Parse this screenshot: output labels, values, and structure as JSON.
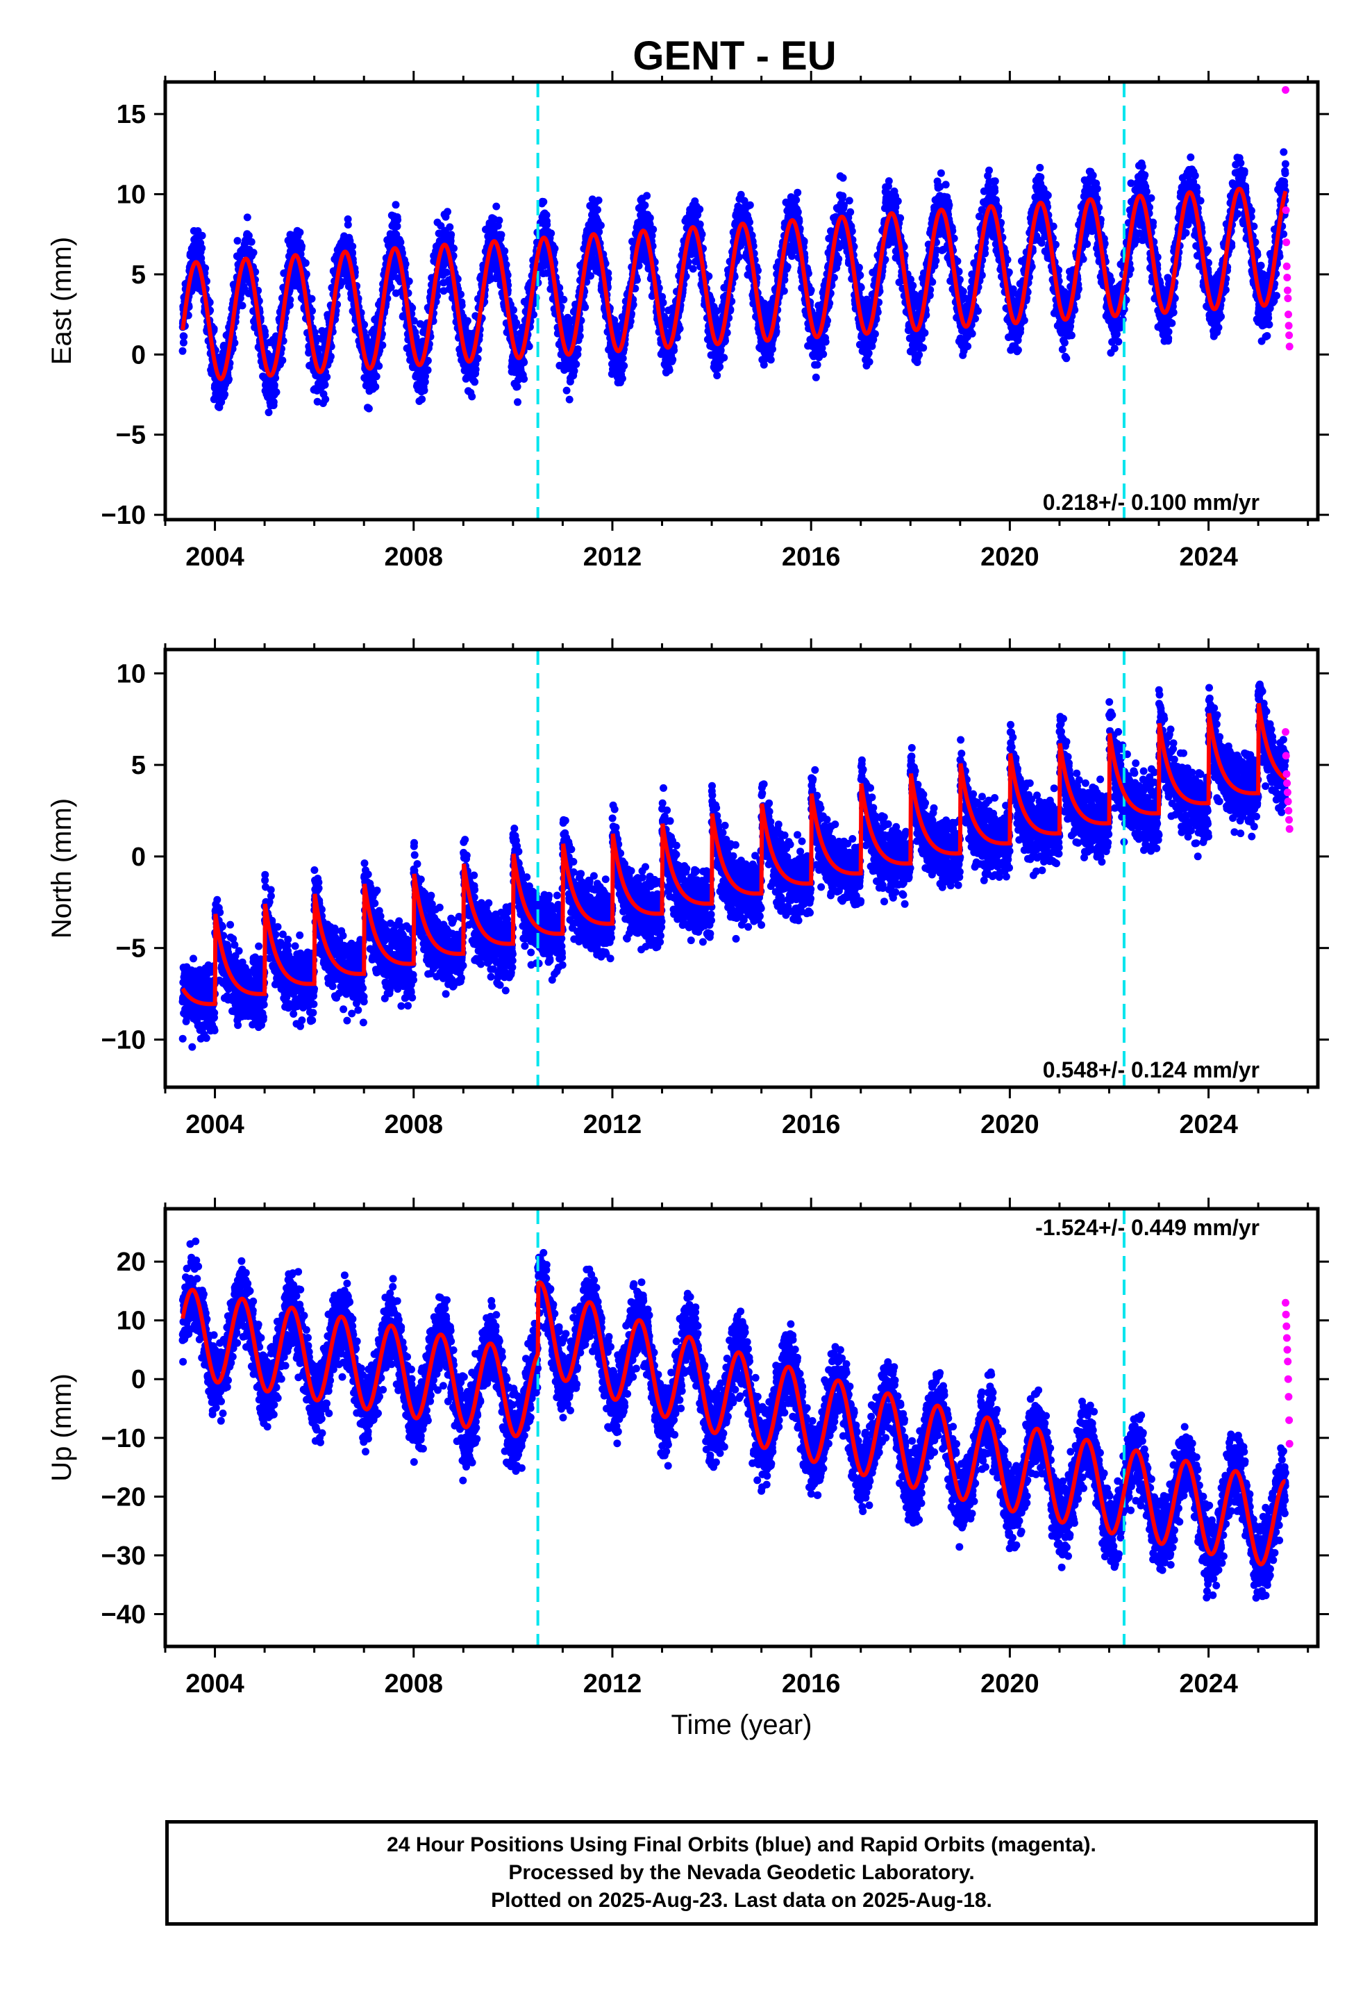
{
  "title": "GENT - EU",
  "footer": {
    "line1": "24 Hour Positions Using Final Orbits (blue) and Rapid Orbits (magenta).",
    "line2": "Processed by the Nevada Geodetic Laboratory.",
    "line3": "Plotted on 2025-Aug-23. Last data on 2025-Aug-18."
  },
  "colors": {
    "final": "#0000ff",
    "rapid": "#ff00ff",
    "model": "#ff0000",
    "event": "#00e5ee"
  },
  "chart_data": [
    {
      "type": "scatter",
      "panel": "east",
      "ylabel": "East (mm)",
      "xlabel": "",
      "xlim": [
        2003.0,
        2026.2
      ],
      "ylim": [
        -10.3,
        17
      ],
      "xticks": [
        2004,
        2008,
        2012,
        2016,
        2020,
        2024
      ],
      "yticks": [
        -10,
        -5,
        0,
        5,
        10,
        15
      ],
      "rate_label": "0.218+/- 0.100 mm/yr",
      "rate_position": "bottom-right",
      "event_lines": [
        2010.5,
        2022.3
      ],
      "model": {
        "t0": 2003.35,
        "offset0": 2.0,
        "trend": 0.218,
        "amplitude": 3.7,
        "phase_peak": 0.62,
        "step_2010": 0,
        "offset_range": [
          -5.2,
          6.3
        ]
      },
      "final_orbits": {
        "start": 2003.35,
        "end": 2025.55,
        "scatter": 1.4
      },
      "rapid_orbits": {
        "start": 2025.55,
        "end": 2025.63,
        "values": [
          16.5,
          9.0,
          7.0,
          5.5,
          4.8,
          4.0,
          3.5,
          2.5,
          1.8,
          1.2,
          0.5
        ]
      }
    },
    {
      "type": "scatter",
      "panel": "north",
      "ylabel": "North (mm)",
      "xlabel": "",
      "xlim": [
        2003.0,
        2026.2
      ],
      "ylim": [
        -12.6,
        11.3
      ],
      "xticks": [
        2004,
        2008,
        2012,
        2016,
        2020,
        2024
      ],
      "yticks": [
        -10,
        -5,
        0,
        5,
        10
      ],
      "rate_label": "0.548+/- 0.124 mm/yr",
      "rate_position": "bottom-right",
      "event_lines": [
        2010.5,
        2022.3
      ],
      "model": {
        "t0": 2003.35,
        "offset0": -6.5,
        "trend": 0.548,
        "amplitude": 2.0,
        "phase_peak": 0.0,
        "step_2010": 0,
        "offset_range": [
          -7.0,
          8.5
        ]
      },
      "final_orbits": {
        "start": 2003.35,
        "end": 2025.55,
        "scatter": 1.3
      },
      "rapid_orbits": {
        "start": 2025.55,
        "end": 2025.63,
        "values": [
          6.8,
          5.5,
          4.5,
          4.0,
          3.5,
          3.0,
          2.5,
          2.0,
          1.5
        ]
      }
    },
    {
      "type": "scatter",
      "panel": "up",
      "ylabel": "Up (mm)",
      "xlabel": "Time (year)",
      "xlim": [
        2003.0,
        2026.2
      ],
      "ylim": [
        -45.5,
        29
      ],
      "xticks": [
        2004,
        2008,
        2012,
        2016,
        2020,
        2024
      ],
      "yticks": [
        -40,
        -30,
        -20,
        -10,
        0,
        10,
        20
      ],
      "rate_label": "-1.524+/- 0.449 mm/yr",
      "rate_position": "top-right",
      "event_lines": [
        2010.5,
        2022.3
      ],
      "model": {
        "t0": 2003.35,
        "offset0": 8.0,
        "trend": -1.524,
        "amplitude": 7.5,
        "phase_peak": 0.55,
        "step_2010": 12,
        "offset_range": [
          -16.5,
          16.5
        ]
      },
      "final_orbits": {
        "start": 2003.35,
        "end": 2025.55,
        "scatter": 4.5
      },
      "rapid_orbits": {
        "start": 2025.55,
        "end": 2025.63,
        "values": [
          13,
          11,
          9,
          7,
          5,
          3,
          0,
          -3,
          -7,
          -11
        ]
      }
    }
  ]
}
